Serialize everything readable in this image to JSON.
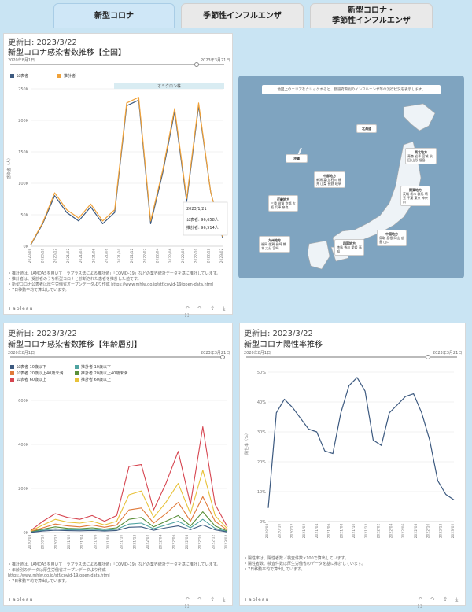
{
  "tabs": [
    {
      "label": "新型コロナ",
      "active": true
    },
    {
      "label": "季節性インフルエンザ",
      "active": false
    },
    {
      "label": "新型コロナ・\n季節性インフルエンザ",
      "active": false
    }
  ],
  "panel1": {
    "updated": "更新日: 2023/3/22",
    "title": "新型コロナ感染者数推移【全国】",
    "slider_start": "2020年8月1日",
    "slider_end": "2023年3月21日",
    "legend": [
      {
        "label": "公表者",
        "color": "#3d5a80"
      },
      {
        "label": "推計者",
        "color": "#f0a23a"
      }
    ],
    "wave_label": "オミクロン株",
    "ylabel": "感染者（人）",
    "tooltip": {
      "date": "2023/1/21",
      "line1": "公表者: 96,658人",
      "line2": "推計者: 96,514人"
    },
    "notes": "・推計値は、JAMDASを用いて「ラプラス法による推計値」「COVID-19」などの業界統計データを基に推計しています。\n・推計者は、受診者のうち新型コロナと診断された患者を推計した値です。\n・新型コロナ公表者は厚生労働省オープンデータより作成 https://www.mhlw.go.jp/stf/covid-19/open-data.html\n・7日移動平均で算出しています。",
    "footer": "+ableau",
    "chart_data": {
      "type": "line",
      "x": [
        "2020/08",
        "2020/10",
        "2020/12",
        "2021/02",
        "2021/04",
        "2021/06",
        "2021/08",
        "2021/10",
        "2021/12",
        "2022/02",
        "2022/04",
        "2022/06",
        "2022/08",
        "2022/10",
        "2022/12",
        "2023/02",
        "2023/03"
      ],
      "ylim": [
        0,
        280000
      ],
      "yticks": [
        "0K",
        "50K",
        "100K",
        "150K",
        "200K",
        "250K"
      ],
      "xticks": [
        "2020/08",
        "2020/10",
        "2020/12",
        "2021/02",
        "2021/04",
        "2021/06",
        "2021/08",
        "2021/10",
        "2021/12",
        "2022/02",
        "2022/04",
        "2022/06",
        "2022/08",
        "2022/10",
        "2022/12",
        "2023/02"
      ],
      "series": [
        {
          "name": "公表者",
          "color": "#3d5a80",
          "values": [
            2000,
            40000,
            90000,
            60000,
            45000,
            70000,
            40000,
            60000,
            250000,
            260000,
            40000,
            130000,
            240000,
            80000,
            250000,
            96658,
            15000
          ]
        },
        {
          "name": "推計者",
          "color": "#f0a23a",
          "values": [
            3000,
            42000,
            95000,
            65000,
            50000,
            75000,
            45000,
            65000,
            255000,
            265000,
            45000,
            135000,
            245000,
            85000,
            255000,
            96514,
            17000
          ]
        }
      ]
    }
  },
  "map": {
    "title": "地図上のエリアをクリックすると、都道府県別のインフルエンザ等の流行状況を表示します。",
    "regions": [
      {
        "name": "北海道",
        "pref": "北海道"
      },
      {
        "name": "東北地方",
        "pref": "青森 岩手 宮城 秋田 山形 福島"
      },
      {
        "name": "関東地方",
        "pref": "茨城 栃木 群馬 埼玉 千葉 東京 神奈川"
      },
      {
        "name": "中部地方",
        "pref": "新潟 富山 石川 福井 山梨 長野 岐阜"
      },
      {
        "name": "近畿地方",
        "pref": "三重 滋賀 京都 大阪 兵庫 奈良"
      },
      {
        "name": "中国地方",
        "pref": "鳥取 島根 岡山 広島 山口"
      },
      {
        "name": "四国地方",
        "pref": "徳島 香川 愛媛 高知"
      },
      {
        "name": "九州地方",
        "pref": "福岡 佐賀 長崎 熊本 大分 宮崎"
      },
      {
        "name": "沖縄",
        "pref": ""
      }
    ]
  },
  "panel3": {
    "updated": "更新日: 2023/3/22",
    "title": "新型コロナ感染者数推移【年齢層別】",
    "slider_start": "2020年8月1日",
    "slider_end": "2023年3月21日",
    "legend": [
      {
        "label": "公表者 10歳以下",
        "color": "#3d5a80"
      },
      {
        "label": "推計者 10歳以下",
        "color": "#4fa3a0"
      },
      {
        "label": "公表者 20歳以上40歳未満",
        "color": "#e07a3a"
      },
      {
        "label": "推計者 20歳以上40歳未満",
        "color": "#5a8f3a"
      },
      {
        "label": "公表者 60歳以上",
        "color": "#d64550"
      },
      {
        "label": "推計者 60歳以上",
        "color": "#e8c23a"
      }
    ],
    "notes": "・推計値は、JAMDASを用いて「ラプラス法による推計値」「COVID-19」などの業界統計データを基に推計しています。\n・年齢別のデータは厚生労働省オープンデータより作成\nhttps://www.mhlw.go.jp/stf/covid-19/open-data.html\n・7日移動平均で算出しています。",
    "footer": "+ableau",
    "chart_data": {
      "type": "line",
      "ylim": [
        0,
        700000
      ],
      "yticks": [
        "0K",
        "200K",
        "400K",
        "600K"
      ],
      "xticks": [
        "2020/08",
        "2020/10",
        "2020/12",
        "2021/02",
        "2021/04",
        "2021/06",
        "2021/08",
        "2021/10",
        "2021/12",
        "2022/02",
        "2022/04",
        "2022/06",
        "2022/08",
        "2022/10",
        "2022/12",
        "2023/02"
      ],
      "series": [
        {
          "name": "公表者 60歳以上",
          "color": "#d64550",
          "values": [
            10000,
            60000,
            100000,
            80000,
            70000,
            90000,
            60000,
            90000,
            350000,
            360000,
            120000,
            260000,
            430000,
            150000,
            560000,
            150000,
            30000
          ]
        },
        {
          "name": "推計者 60歳以上",
          "color": "#e8c23a",
          "values": [
            8000,
            40000,
            70000,
            55000,
            50000,
            60000,
            40000,
            60000,
            200000,
            220000,
            80000,
            160000,
            260000,
            100000,
            330000,
            90000,
            20000
          ]
        },
        {
          "name": "公表者 20歳以上40歳未満",
          "color": "#e07a3a",
          "values": [
            5000,
            25000,
            45000,
            35000,
            30000,
            40000,
            28000,
            40000,
            120000,
            130000,
            50000,
            100000,
            160000,
            60000,
            190000,
            60000,
            12000
          ]
        },
        {
          "name": "推計者 20歳以上40歳未満",
          "color": "#5a8f3a",
          "values": [
            3000,
            18000,
            30000,
            22000,
            20000,
            25000,
            18000,
            25000,
            70000,
            80000,
            30000,
            60000,
            90000,
            35000,
            110000,
            35000,
            8000
          ]
        },
        {
          "name": "推計者 10歳以下",
          "color": "#4fa3a0",
          "values": [
            2000,
            12000,
            20000,
            15000,
            14000,
            17000,
            12000,
            17000,
            45000,
            50000,
            20000,
            40000,
            60000,
            25000,
            70000,
            22000,
            5000
          ]
        },
        {
          "name": "公表者 10歳以下",
          "color": "#3d5a80",
          "values": [
            1000,
            8000,
            12000,
            10000,
            9000,
            11000,
            8000,
            11000,
            28000,
            30000,
            12000,
            25000,
            35000,
            15000,
            40000,
            14000,
            3000
          ]
        }
      ]
    }
  },
  "panel4": {
    "updated": "更新日: 2023/3/22",
    "title": "新型コロナ陽性率推移",
    "slider_start": "2020年8月1日",
    "slider_end": "2023年3月21日",
    "ylabel": "陽性率（%）",
    "notes": "・陽性率は、陽性者数／検査件数×100で算出しています。\n・陽性者数、検査件数は厚生労働省のデータを基に推計しています。\n・7日移動平均で算出しています。",
    "footer": "+ableau",
    "chart_data": {
      "type": "line",
      "ylim": [
        0,
        55
      ],
      "yticks": [
        "0%",
        "10%",
        "20%",
        "30%",
        "40%",
        "50%"
      ],
      "xticks": [
        "2020/08",
        "2020/10",
        "2020/12",
        "2021/02",
        "2021/04",
        "2021/06",
        "2021/08",
        "2021/10",
        "2021/12",
        "2022/02",
        "2022/04",
        "2022/06",
        "2022/08",
        "2022/10",
        "2022/12",
        "2023/02"
      ],
      "series": [
        {
          "name": "陽性率",
          "color": "#3d5a80",
          "values": [
            5,
            40,
            45,
            42,
            38,
            34,
            33,
            26,
            25,
            40,
            50,
            53,
            48,
            30,
            28,
            40,
            43,
            46,
            47,
            40,
            30,
            15,
            10,
            8
          ]
        }
      ]
    }
  }
}
